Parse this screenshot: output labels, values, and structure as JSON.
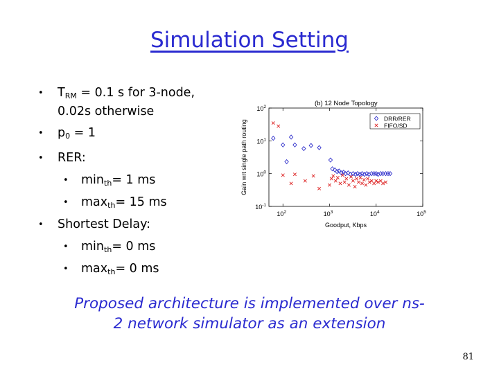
{
  "slide": {
    "title": "Simulation Setting",
    "bullets": [
      {
        "main": "T",
        "sub": "RM",
        "rest": " = 0.1 s for 3-node,",
        "line2": "0.02s otherwise"
      },
      {
        "main": "p",
        "sub": "0",
        "rest": " = 1"
      },
      {
        "main": "RER:"
      },
      {
        "main": "min",
        "sub": "th",
        "rest": "= 1 ms"
      },
      {
        "main": "max",
        "sub": "th",
        "rest": "= 15 ms"
      },
      {
        "main": "Shortest Delay:"
      },
      {
        "main": "min",
        "sub": "th",
        "rest": "= 0 ms"
      },
      {
        "main": "max",
        "sub": "th",
        "rest": "= 0 ms"
      }
    ],
    "caption_line1": "Proposed architecture is implemented over ns-",
    "caption_line2": "2 network simulator as an extension",
    "page_number": "81"
  },
  "chart_data": {
    "type": "scatter",
    "title": "(b) 12 Node Topology",
    "xlabel": "Goodput, Kbps",
    "ylabel": "Gain wrt single path routing",
    "xscale": "log",
    "yscale": "log",
    "xlim": [
      50,
      100000
    ],
    "ylim": [
      0.1,
      100
    ],
    "xticks": [
      {
        "v": 100,
        "base": "10",
        "exp": "2"
      },
      {
        "v": 1000,
        "base": "10",
        "exp": "3"
      },
      {
        "v": 10000,
        "base": "10",
        "exp": "4"
      },
      {
        "v": 100000,
        "base": "10",
        "exp": "5"
      }
    ],
    "yticks": [
      {
        "v": 0.1,
        "base": "10",
        "exp": "-1"
      },
      {
        "v": 1,
        "base": "10",
        "exp": "0"
      },
      {
        "v": 10,
        "base": "10",
        "exp": "1"
      },
      {
        "v": 100,
        "base": "10",
        "exp": "2"
      }
    ],
    "legend_position": "top-right",
    "colors": {
      "drr": "#3333cc",
      "fifo": "#dd2222"
    },
    "series": [
      {
        "name": "DRR/RER",
        "marker": "diamond",
        "points": [
          [
            62,
            12
          ],
          [
            100,
            7.5
          ],
          [
            120,
            2.3
          ],
          [
            150,
            13
          ],
          [
            180,
            7.5
          ],
          [
            280,
            5.8
          ],
          [
            400,
            7.2
          ],
          [
            600,
            6.2
          ],
          [
            1050,
            2.6
          ],
          [
            1150,
            1.4
          ],
          [
            1300,
            1.3
          ],
          [
            1450,
            1.15
          ],
          [
            1600,
            1.2
          ],
          [
            1800,
            1.05
          ],
          [
            2000,
            1.1
          ],
          [
            2200,
            1.0
          ],
          [
            2500,
            1.05
          ],
          [
            2800,
            0.95
          ],
          [
            3200,
            1.0
          ],
          [
            3600,
            0.95
          ],
          [
            4000,
            1.0
          ],
          [
            4500,
            0.95
          ],
          [
            5000,
            1.0
          ],
          [
            5600,
            0.95
          ],
          [
            6300,
            1.0
          ],
          [
            7000,
            0.95
          ],
          [
            8000,
            1.0
          ],
          [
            9000,
            1.0
          ],
          [
            10000,
            1.0
          ],
          [
            11000,
            0.95
          ],
          [
            12500,
            1.0
          ],
          [
            14000,
            1.0
          ],
          [
            16000,
            1.0
          ],
          [
            18000,
            1.0
          ],
          [
            20000,
            1.0
          ]
        ]
      },
      {
        "name": "FIFO/SD",
        "marker": "x",
        "points": [
          [
            62,
            35
          ],
          [
            80,
            28
          ],
          [
            100,
            0.9
          ],
          [
            150,
            0.5
          ],
          [
            180,
            0.95
          ],
          [
            300,
            0.6
          ],
          [
            450,
            0.85
          ],
          [
            600,
            0.35
          ],
          [
            1000,
            0.45
          ],
          [
            1100,
            0.7
          ],
          [
            1200,
            0.85
          ],
          [
            1350,
            0.6
          ],
          [
            1500,
            0.75
          ],
          [
            1700,
            0.5
          ],
          [
            1900,
            0.9
          ],
          [
            2100,
            0.55
          ],
          [
            2300,
            0.7
          ],
          [
            2600,
            0.45
          ],
          [
            2900,
            0.8
          ],
          [
            3200,
            0.6
          ],
          [
            3500,
            0.4
          ],
          [
            3800,
            0.7
          ],
          [
            4200,
            0.55
          ],
          [
            4600,
            0.75
          ],
          [
            5000,
            0.5
          ],
          [
            5500,
            0.65
          ],
          [
            6000,
            0.45
          ],
          [
            6600,
            0.7
          ],
          [
            7200,
            0.55
          ],
          [
            8000,
            0.6
          ],
          [
            9000,
            0.5
          ],
          [
            10000,
            0.6
          ],
          [
            11000,
            0.55
          ],
          [
            12500,
            0.6
          ],
          [
            14000,
            0.5
          ],
          [
            16000,
            0.55
          ]
        ]
      }
    ]
  }
}
